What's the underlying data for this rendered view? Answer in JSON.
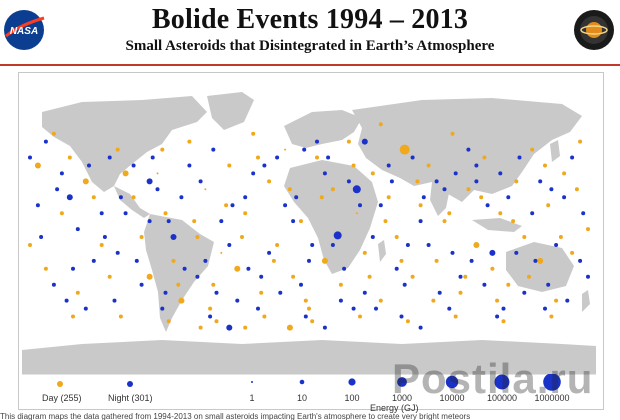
{
  "header": {
    "title": "Bolide Events 1994 – 2013",
    "subtitle": "Small Asteroids that Disintegrated in Earth’s Atmosphere",
    "nasa_logo_text": "NASA",
    "psd_logo_text": "Planetary Science"
  },
  "legend": {
    "day_label": "Day (255)",
    "night_label": "Night (301)",
    "energy_ticks": [
      "1",
      "10",
      "100",
      "1000",
      "10000",
      "100000",
      "1000000"
    ],
    "energy_axis_label": "Energy (GJ)"
  },
  "caption": "This diagram maps the data gathered from 1994-2013 on small asteroids impacting Earth's atmosphere to create very bright meteors",
  "watermark": "Postila.ru",
  "colors": {
    "day": "#f0a81c",
    "night": "#1a32c8",
    "land": "#c9c9c9",
    "ocean": "#ffffff",
    "rule": "#c0392b"
  },
  "map_data": {
    "projection": "equirectangular",
    "day_count": 255,
    "night_count": 301,
    "day_events": [
      [
        -160,
        60,
        2
      ],
      [
        -150,
        45,
        2
      ],
      [
        -140,
        30,
        3
      ],
      [
        -130,
        -10,
        2
      ],
      [
        -120,
        50,
        2
      ],
      [
        -110,
        20,
        2
      ],
      [
        -100,
        -30,
        3
      ],
      [
        -95,
        35,
        1
      ],
      [
        -90,
        10,
        2
      ],
      [
        -85,
        -20,
        2
      ],
      [
        -80,
        -45,
        3
      ],
      [
        -75,
        55,
        2
      ],
      [
        -70,
        -5,
        2
      ],
      [
        -65,
        25,
        1
      ],
      [
        -60,
        -35,
        2
      ],
      [
        -55,
        -15,
        1
      ],
      [
        -50,
        40,
        2
      ],
      [
        -45,
        -25,
        3
      ],
      [
        -40,
        10,
        2
      ],
      [
        -35,
        60,
        2
      ],
      [
        -30,
        -40,
        2
      ],
      [
        -25,
        30,
        2
      ],
      [
        -20,
        -10,
        2
      ],
      [
        -15,
        50,
        1
      ],
      [
        -10,
        -30,
        2
      ],
      [
        -5,
        5,
        2
      ],
      [
        0,
        -50,
        2
      ],
      [
        5,
        45,
        2
      ],
      [
        10,
        -20,
        3
      ],
      [
        15,
        25,
        2
      ],
      [
        20,
        -35,
        2
      ],
      [
        25,
        55,
        2
      ],
      [
        30,
        10,
        1
      ],
      [
        35,
        -15,
        2
      ],
      [
        40,
        35,
        2
      ],
      [
        45,
        -45,
        2
      ],
      [
        50,
        20,
        2
      ],
      [
        55,
        -5,
        2
      ],
      [
        60,
        50,
        5
      ],
      [
        65,
        -30,
        2
      ],
      [
        70,
        15,
        2
      ],
      [
        75,
        40,
        2
      ],
      [
        80,
        -20,
        2
      ],
      [
        85,
        5,
        2
      ],
      [
        90,
        60,
        2
      ],
      [
        95,
        -40,
        2
      ],
      [
        100,
        25,
        2
      ],
      [
        105,
        -10,
        3
      ],
      [
        110,
        45,
        2
      ],
      [
        115,
        -25,
        2
      ],
      [
        120,
        10,
        2
      ],
      [
        125,
        -35,
        2
      ],
      [
        130,
        30,
        2
      ],
      [
        135,
        -5,
        2
      ],
      [
        140,
        50,
        2
      ],
      [
        145,
        -20,
        3
      ],
      [
        150,
        15,
        2
      ],
      [
        155,
        -45,
        2
      ],
      [
        160,
        35,
        2
      ],
      [
        165,
        -15,
        2
      ],
      [
        170,
        55,
        2
      ],
      [
        175,
        0,
        2
      ],
      [
        -165,
        -25,
        2
      ],
      [
        -155,
        10,
        2
      ],
      [
        -145,
        -40,
        2
      ],
      [
        -135,
        20,
        2
      ],
      [
        -125,
        -30,
        2
      ],
      [
        -115,
        35,
        3
      ],
      [
        -105,
        -5,
        2
      ],
      [
        -92,
        50,
        2
      ],
      [
        -82,
        -35,
        2
      ],
      [
        -72,
        5,
        2
      ],
      [
        -62,
        -50,
        2
      ],
      [
        -52,
        15,
        2
      ],
      [
        -42,
        -5,
        2
      ],
      [
        -32,
        45,
        2
      ],
      [
        -22,
        -20,
        2
      ],
      [
        -12,
        25,
        2
      ],
      [
        -2,
        -45,
        2
      ],
      [
        8,
        20,
        2
      ],
      [
        18,
        -5,
        2
      ],
      [
        28,
        40,
        2
      ],
      [
        38,
        -30,
        2
      ],
      [
        48,
        5,
        2
      ],
      [
        58,
        -20,
        2
      ],
      [
        68,
        30,
        2
      ],
      [
        78,
        -45,
        2
      ],
      [
        88,
        10,
        2
      ],
      [
        98,
        -30,
        2
      ],
      [
        108,
        20,
        2
      ],
      [
        118,
        -45,
        2
      ],
      [
        128,
        5,
        2
      ],
      [
        138,
        -30,
        2
      ],
      [
        148,
        40,
        2
      ],
      [
        158,
        -5,
        2
      ],
      [
        168,
        25,
        2
      ],
      [
        -170,
        40,
        3
      ],
      [
        -175,
        -10,
        2
      ],
      [
        -148,
        -55,
        2
      ],
      [
        -118,
        -55,
        2
      ],
      [
        -88,
        -58,
        2
      ],
      [
        -58,
        -58,
        2
      ],
      [
        -28,
        -55,
        2
      ],
      [
        2,
        -58,
        2
      ],
      [
        32,
        -55,
        2
      ],
      [
        62,
        -58,
        2
      ],
      [
        92,
        -55,
        2
      ],
      [
        122,
        -58,
        2
      ],
      [
        152,
        -55,
        2
      ],
      [
        -12,
        -62,
        3
      ],
      [
        -68,
        -62,
        2
      ],
      [
        45,
        66,
        2
      ],
      [
        -40,
        -62,
        2
      ]
    ],
    "night_events": [
      [
        -165,
        55,
        2
      ],
      [
        -155,
        35,
        2
      ],
      [
        -145,
        0,
        2
      ],
      [
        -135,
        -20,
        2
      ],
      [
        -125,
        45,
        2
      ],
      [
        -115,
        10,
        2
      ],
      [
        -105,
        -35,
        2
      ],
      [
        -95,
        25,
        2
      ],
      [
        -85,
        -5,
        3
      ],
      [
        -75,
        40,
        2
      ],
      [
        -65,
        -20,
        2
      ],
      [
        -55,
        5,
        2
      ],
      [
        -45,
        -45,
        2
      ],
      [
        -35,
        35,
        2
      ],
      [
        -25,
        -15,
        2
      ],
      [
        -15,
        15,
        2
      ],
      [
        -5,
        -35,
        2
      ],
      [
        5,
        55,
        2
      ],
      [
        15,
        -10,
        2
      ],
      [
        25,
        30,
        2
      ],
      [
        35,
        -40,
        2
      ],
      [
        45,
        15,
        2
      ],
      [
        55,
        -25,
        2
      ],
      [
        65,
        45,
        2
      ],
      [
        75,
        -10,
        2
      ],
      [
        85,
        25,
        2
      ],
      [
        95,
        -30,
        2
      ],
      [
        105,
        40,
        2
      ],
      [
        115,
        -15,
        3
      ],
      [
        125,
        20,
        2
      ],
      [
        135,
        -40,
        2
      ],
      [
        145,
        30,
        2
      ],
      [
        155,
        -10,
        2
      ],
      [
        165,
        45,
        2
      ],
      [
        175,
        -30,
        2
      ],
      [
        -170,
        15,
        2
      ],
      [
        -160,
        -35,
        2
      ],
      [
        -150,
        20,
        3
      ],
      [
        -140,
        -50,
        2
      ],
      [
        -130,
        10,
        2
      ],
      [
        -120,
        -15,
        2
      ],
      [
        -110,
        40,
        2
      ],
      [
        -100,
        5,
        2
      ],
      [
        -90,
        -40,
        2
      ],
      [
        -80,
        20,
        2
      ],
      [
        -70,
        -30,
        2
      ],
      [
        -60,
        50,
        2
      ],
      [
        -50,
        -10,
        2
      ],
      [
        -40,
        20,
        2
      ],
      [
        -30,
        -30,
        2
      ],
      [
        -20,
        45,
        2
      ],
      [
        -10,
        5,
        2
      ],
      [
        0,
        -20,
        2
      ],
      [
        10,
        35,
        2
      ],
      [
        20,
        -45,
        2
      ],
      [
        30,
        25,
        4
      ],
      [
        40,
        -5,
        2
      ],
      [
        50,
        40,
        2
      ],
      [
        60,
        -35,
        2
      ],
      [
        70,
        5,
        2
      ],
      [
        80,
        30,
        2
      ],
      [
        90,
        -15,
        2
      ],
      [
        100,
        50,
        2
      ],
      [
        110,
        -35,
        2
      ],
      [
        120,
        35,
        2
      ],
      [
        130,
        -15,
        2
      ],
      [
        140,
        10,
        2
      ],
      [
        150,
        -35,
        2
      ],
      [
        160,
        20,
        2
      ],
      [
        170,
        -20,
        2
      ],
      [
        -175,
        45,
        2
      ],
      [
        -168,
        -5,
        2
      ],
      [
        -158,
        25,
        2
      ],
      [
        -148,
        -25,
        2
      ],
      [
        -138,
        40,
        2
      ],
      [
        -128,
        -5,
        2
      ],
      [
        -118,
        20,
        2
      ],
      [
        -108,
        -20,
        2
      ],
      [
        -98,
        45,
        2
      ],
      [
        -88,
        5,
        2
      ],
      [
        -78,
        -25,
        2
      ],
      [
        -68,
        30,
        2
      ],
      [
        -58,
        -40,
        2
      ],
      [
        -48,
        15,
        2
      ],
      [
        -38,
        -25,
        2
      ],
      [
        -28,
        40,
        2
      ],
      [
        -18,
        -40,
        2
      ],
      [
        -8,
        20,
        2
      ],
      [
        2,
        -10,
        2
      ],
      [
        12,
        45,
        2
      ],
      [
        22,
        -25,
        2
      ],
      [
        32,
        15,
        2
      ],
      [
        42,
        -50,
        2
      ],
      [
        52,
        30,
        2
      ],
      [
        62,
        -10,
        2
      ],
      [
        72,
        20,
        2
      ],
      [
        82,
        -40,
        2
      ],
      [
        92,
        35,
        2
      ],
      [
        102,
        -20,
        2
      ],
      [
        112,
        15,
        2
      ],
      [
        122,
        -50,
        2
      ],
      [
        132,
        45,
        2
      ],
      [
        142,
        -20,
        2
      ],
      [
        152,
        25,
        2
      ],
      [
        162,
        -45,
        2
      ],
      [
        172,
        10,
        2
      ],
      [
        -152,
        -45,
        2
      ],
      [
        -122,
        -45,
        2
      ],
      [
        -92,
        -50,
        2
      ],
      [
        -62,
        -55,
        2
      ],
      [
        -32,
        -50,
        2
      ],
      [
        -2,
        -55,
        2
      ],
      [
        28,
        -50,
        2
      ],
      [
        58,
        -55,
        2
      ],
      [
        88,
        -50,
        2
      ],
      [
        118,
        -55,
        2
      ],
      [
        148,
        -50,
        2
      ],
      [
        -50,
        -62,
        3
      ],
      [
        10,
        -62,
        2
      ],
      [
        70,
        -62,
        2
      ],
      [
        18,
        -4,
        4
      ],
      [
        -100,
        30,
        3
      ],
      [
        -3,
        50,
        2
      ],
      [
        105,
        30,
        2
      ],
      [
        35,
        55,
        3
      ]
    ]
  }
}
